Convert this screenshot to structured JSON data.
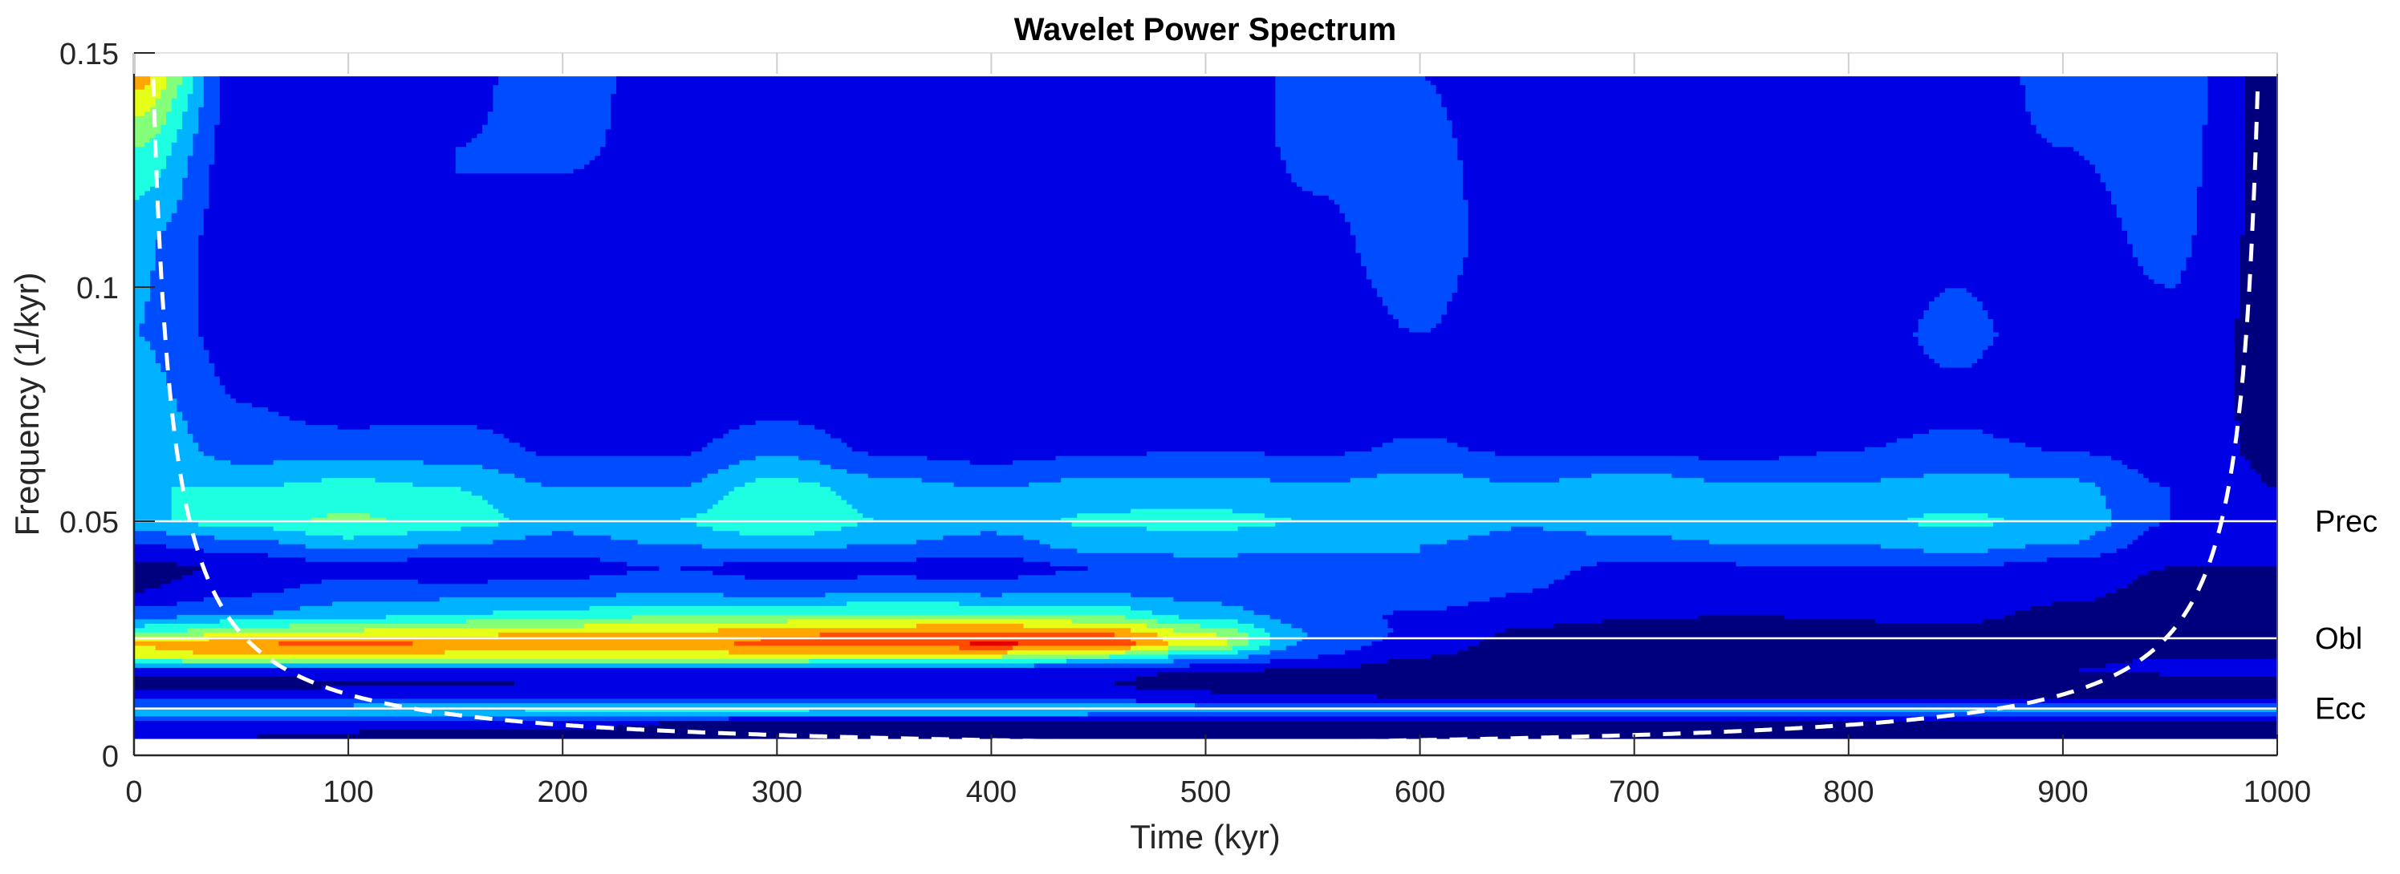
{
  "chart_data": {
    "type": "heatmap",
    "subtype": "filled-contour",
    "title": "Wavelet Power Spectrum",
    "xlabel": "Time (kyr)",
    "ylabel": "Frequency (1/kyr)",
    "xlim": [
      0,
      1000
    ],
    "ylim": [
      0,
      0.15
    ],
    "xticks": [
      0,
      100,
      200,
      300,
      400,
      500,
      600,
      700,
      800,
      900,
      1000
    ],
    "xtick_labels": [
      "0",
      "100",
      "200",
      "300",
      "400",
      "500",
      "600",
      "700",
      "800",
      "900",
      "1000"
    ],
    "yticks": [
      0,
      0.05,
      0.1,
      0.15
    ],
    "ytick_labels": [
      "0",
      "0.05",
      "0.1",
      "0.15"
    ],
    "grid": false,
    "colormap": "jet",
    "level_colors": [
      "#00007F",
      "#0000E5",
      "#004CFF",
      "#00B2FF",
      "#1DFFE0",
      "#84FF7A",
      "#E6FF19",
      "#FFA600",
      "#FF4C00",
      "#E50000",
      "#7F0000"
    ],
    "power_level_grid": {
      "description": "Approximate contour level index (0 = lowest power, 10 = highest) sampled at the listed times and frequencies",
      "time": [
        0,
        50,
        100,
        150,
        200,
        250,
        300,
        350,
        400,
        450,
        500,
        550,
        600,
        650,
        700,
        750,
        800,
        850,
        900,
        950,
        1000
      ],
      "frequency": [
        0.004,
        0.007,
        0.009,
        0.01,
        0.012,
        0.015,
        0.018,
        0.021,
        0.024,
        0.026,
        0.03,
        0.035,
        0.04,
        0.045,
        0.05,
        0.057,
        0.065,
        0.075,
        0.09,
        0.11,
        0.13,
        0.145
      ],
      "levels": [
        [
          1,
          1,
          0.5,
          0.5,
          0.5,
          0.5,
          0.5,
          0.5,
          0.5,
          0.5,
          0.5,
          0.5,
          0.5,
          0.5,
          0.5,
          0.5,
          0.5,
          0.5,
          0.5,
          0.5,
          0.5
        ],
        [
          2,
          2,
          2,
          1.5,
          1.5,
          1,
          0.6,
          0.5,
          0.5,
          0.5,
          0.5,
          0.5,
          0.5,
          0.5,
          0.5,
          0.5,
          0.5,
          0.5,
          0.5,
          0.5,
          0.5
        ],
        [
          3.2,
          3.2,
          3.4,
          3.6,
          3.8,
          3.8,
          3.6,
          3.5,
          3.4,
          3.3,
          3.2,
          3.2,
          3.1,
          3.1,
          3.1,
          3.1,
          3.0,
          3.0,
          3.0,
          3.0,
          3.0
        ],
        [
          3,
          3.2,
          3.5,
          3.8,
          4.2,
          4.3,
          4.2,
          4.0,
          4.0,
          3.9,
          3.8,
          3.8,
          3.8,
          3.7,
          3.6,
          3.6,
          3.5,
          3.4,
          3.3,
          3.2,
          3.2
        ],
        [
          2,
          2,
          2,
          2,
          2,
          2.2,
          2.2,
          2,
          1.8,
          1.6,
          1.4,
          1.2,
          1.1,
          1.0,
          1.0,
          1.0,
          1.0,
          1.0,
          0.8,
          0.8,
          0.8
        ],
        [
          0.6,
          0.6,
          0.8,
          0.8,
          1,
          1,
          1,
          1,
          1,
          1,
          0.6,
          0.4,
          0.4,
          0.4,
          0.4,
          0.4,
          0.4,
          0.4,
          0.4,
          0.4,
          0.4
        ],
        [
          1.2,
          1.2,
          1.4,
          1.6,
          1.6,
          1.6,
          1.6,
          1.5,
          1.4,
          1.2,
          1.0,
          0.8,
          0.5,
          0.4,
          0.4,
          0.5,
          0.6,
          0.8,
          1.0,
          1.2,
          1.2
        ],
        [
          6.5,
          6.8,
          6.8,
          6.5,
          6.5,
          6.5,
          6.5,
          6.4,
          6.0,
          5.0,
          3.5,
          2.0,
          1.0,
          0.6,
          0.5,
          0.5,
          0.5,
          0.6,
          0.8,
          1.0,
          1.0
        ],
        [
          7.2,
          8,
          8.2,
          8,
          7.8,
          7.8,
          8.2,
          8.6,
          9.2,
          8.8,
          6.5,
          2.8,
          1.5,
          0.6,
          0.4,
          0.4,
          0.5,
          0.5,
          0.5,
          0.5,
          0.5
        ],
        [
          5,
          6,
          6.5,
          6.8,
          7,
          7.2,
          7.8,
          8.2,
          8.4,
          8.0,
          6.0,
          3.0,
          1.8,
          0.8,
          0.5,
          0.5,
          0.6,
          0.8,
          0.5,
          0.4,
          0.4
        ],
        [
          2.5,
          3,
          3.5,
          4,
          4.5,
          4.8,
          5,
          5.2,
          5.2,
          4.8,
          3.5,
          2.5,
          1.8,
          1.4,
          1.2,
          1.0,
          1.2,
          1.2,
          0.8,
          0.6,
          0.6
        ],
        [
          1.0,
          1.8,
          2.5,
          2.5,
          2.6,
          2.8,
          2.5,
          2.8,
          2.6,
          2.8,
          2.5,
          2.4,
          2.8,
          2.0,
          1.5,
          1.2,
          1.5,
          1.6,
          1.2,
          0.8,
          0.8
        ],
        [
          0.5,
          1.2,
          1.5,
          1.2,
          1.5,
          2.0,
          1.5,
          1.5,
          1.5,
          2,
          2.5,
          2,
          3,
          2.2,
          1.8,
          1.8,
          1.8,
          2.0,
          1.4,
          1.0,
          1.0
        ],
        [
          2,
          2.5,
          3.5,
          3,
          2.5,
          3,
          3.5,
          3,
          2.5,
          3.5,
          3.5,
          3.5,
          3,
          2.5,
          2.5,
          3,
          3,
          3.5,
          3,
          1.5,
          1
        ],
        [
          3.8,
          4.5,
          5.2,
          4.5,
          3.5,
          4,
          5,
          4,
          3.5,
          4.2,
          4.3,
          4.0,
          3.8,
          3.2,
          3.8,
          4.0,
          3.8,
          4.2,
          3.8,
          2,
          1
        ],
        [
          4,
          4,
          4.5,
          4,
          3,
          3,
          4.5,
          3.5,
          3,
          3.5,
          3.5,
          3.2,
          3.6,
          3.2,
          3.8,
          3.2,
          3.2,
          3.5,
          3.4,
          2,
          1
        ],
        [
          4,
          2.5,
          2.5,
          2.5,
          1.8,
          1.8,
          2.8,
          1.8,
          1.5,
          1.8,
          2,
          1.8,
          2.2,
          1.8,
          1.8,
          1.6,
          2.0,
          2.2,
          2,
          1.5,
          0.8
        ],
        [
          3.5,
          2,
          1.5,
          1.6,
          1.5,
          1.2,
          1.6,
          1.2,
          1.2,
          1.3,
          1.6,
          1.4,
          1.5,
          1.4,
          1.2,
          1.2,
          1.6,
          1.8,
          1.5,
          1.4,
          0.8
        ],
        [
          3,
          1.5,
          1.2,
          1.8,
          1.4,
          1.2,
          1.2,
          1.4,
          1.4,
          1.2,
          1.4,
          1.6,
          2.0,
          1.4,
          1.0,
          1.2,
          1.6,
          2.2,
          1.6,
          1.8,
          0.6
        ],
        [
          3.2,
          1.4,
          1.6,
          2,
          1.5,
          1.6,
          1.6,
          1.4,
          1.8,
          1.2,
          1.4,
          1.8,
          2.4,
          1.5,
          1.0,
          1.4,
          1.6,
          1.8,
          1.6,
          2.2,
          0.6
        ],
        [
          5,
          1.4,
          1.6,
          2,
          2.2,
          1.6,
          1.5,
          1.5,
          1.8,
          1.2,
          1.4,
          2.2,
          2.2,
          1.5,
          1.0,
          1.4,
          1.4,
          1.8,
          2.0,
          2.4,
          0.6
        ],
        [
          7.5,
          1.5,
          1.6,
          1.8,
          2.4,
          1.6,
          1.4,
          1.4,
          1.6,
          1.2,
          1.4,
          2.2,
          2.0,
          1.4,
          1.0,
          1.4,
          1.6,
          1.6,
          2.2,
          2.6,
          0.6
        ]
      ]
    },
    "data_frequency_range": [
      0.0036,
      0.145
    ],
    "reference_lines": [
      {
        "label": "Prec",
        "frequency": 0.05,
        "color": "#FFFFFF"
      },
      {
        "label": "Obl",
        "frequency": 0.025,
        "color": "#FFFFFF"
      },
      {
        "label": "Ecc",
        "frequency": 0.01,
        "color": "#FFFFFF"
      }
    ],
    "cone_of_influence": {
      "style": "dashed",
      "color": "#FFFFFF",
      "description": "Approximately f = k / min(t, 1000 - t)",
      "k": 1.3
    }
  }
}
